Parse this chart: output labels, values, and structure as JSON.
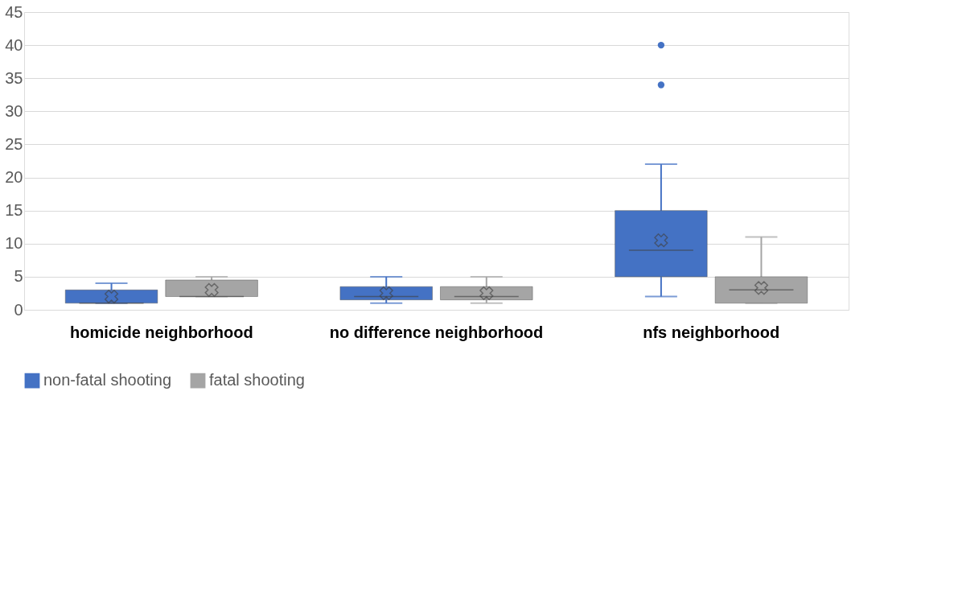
{
  "chart_data": {
    "type": "box",
    "categories": [
      "homicide neighborhood",
      "no difference neighborhood",
      "nfs neighborhood"
    ],
    "series": [
      {
        "name": "non-fatal shooting",
        "color": "#4472c4",
        "boxes": [
          {
            "low": 1,
            "q1": 1,
            "median": 1,
            "q3": 3,
            "high": 4,
            "mean": 2
          },
          {
            "low": 1,
            "q1": 1.5,
            "median": 2,
            "q3": 3.5,
            "high": 5,
            "mean": 2.5
          },
          {
            "low": 2,
            "q1": 5,
            "median": 9,
            "q3": 15,
            "high": 22,
            "mean": 10.5,
            "outliers": [
              34,
              40
            ]
          }
        ]
      },
      {
        "name": "fatal shooting",
        "color": "#a5a5a5",
        "boxes": [
          {
            "low": 2,
            "q1": 2,
            "median": 2,
            "q3": 4.5,
            "high": 5,
            "mean": 3
          },
          {
            "low": 1,
            "q1": 1.5,
            "median": 2,
            "q3": 3.5,
            "high": 5,
            "mean": 2.5
          },
          {
            "low": 1,
            "q1": 1,
            "median": 3,
            "q3": 5,
            "high": 11,
            "mean": 3.3
          }
        ]
      }
    ],
    "ylim": [
      0,
      45
    ],
    "yticks": [
      0,
      5,
      10,
      15,
      20,
      25,
      30,
      35,
      40,
      45
    ],
    "grid": "y",
    "legend": "bottom"
  }
}
